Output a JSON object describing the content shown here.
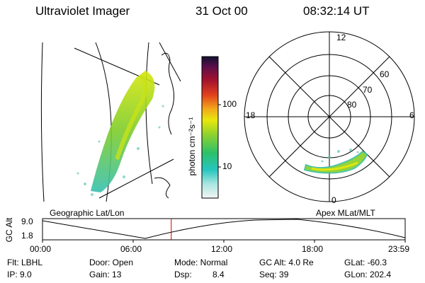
{
  "header": {
    "instrument": "Ultraviolet Imager",
    "date": "31 Oct 00",
    "time": "08:32:14 UT"
  },
  "colorbar": {
    "unit_label": "photon cm⁻²s⁻¹",
    "ticks": [
      "100",
      "10"
    ]
  },
  "polar_plot": {
    "mlt_labels": {
      "top": "12",
      "left": "18",
      "right": "6",
      "bottom": "0"
    },
    "lat_labels": [
      "60",
      "70",
      "80"
    ]
  },
  "projection": {
    "left": "Geographic Lat/Lon",
    "right": "Apex MLat/MLT"
  },
  "altitude_plot": {
    "ylabel": "GC Alt",
    "yticks": [
      "9.0",
      "1.8"
    ],
    "xticks": [
      "00:00",
      "06:00",
      "12:00",
      "18:00",
      "23:59"
    ],
    "current_time_fraction": 0.355
  },
  "status": {
    "filter": "Flt: LBHL",
    "ip": "IP:  9.0",
    "door": "Door: Open",
    "gain": "Gain: 13",
    "mode": "Mode: Normal",
    "dsp_label": "Dsp:",
    "dsp_value": "8.4",
    "gc_alt": "GC Alt: 4.0 Re",
    "seq": "Seq: 39",
    "glat": "GLat: -60.3",
    "glon": "GLon: 202.4"
  },
  "colors": {
    "accent_red": "#cc0000",
    "aurora_green": "#66cc33",
    "aurora_yellow": "#e6e60a"
  }
}
